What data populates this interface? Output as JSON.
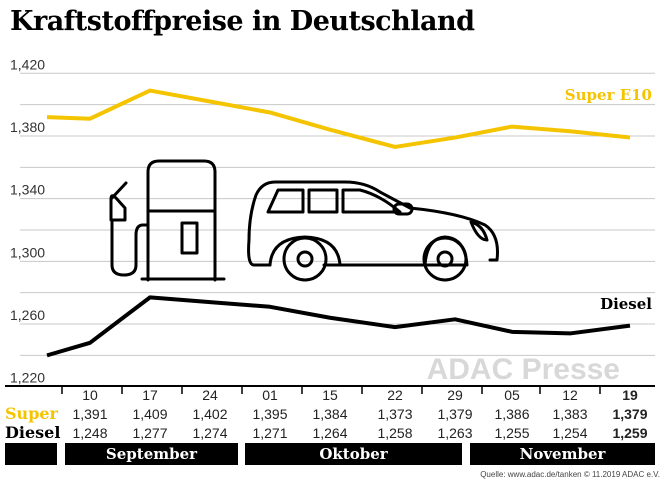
{
  "chart_data": {
    "type": "line",
    "title": "Kraftstoffpreise in Deutschland",
    "ylim": [
      1.22,
      1.42
    ],
    "yticks": [
      "1,420",
      "1,380",
      "1,340",
      "1,300",
      "1,260",
      "1,220"
    ],
    "ytick_values": [
      1.42,
      1.38,
      1.34,
      1.3,
      1.26,
      1.22
    ],
    "grid": true,
    "x": [
      "",
      "10",
      "17",
      "24",
      "01",
      "15",
      "22",
      "29",
      "05",
      "12",
      "19"
    ],
    "months": [
      {
        "label": ""
      },
      {
        "label": "September"
      },
      {
        "label": "Oktober"
      },
      {
        "label": "November"
      }
    ],
    "series": [
      {
        "name": "Super E10",
        "row_label": "Super",
        "color": "#f5c400",
        "values": [
          1.392,
          1.391,
          1.409,
          1.402,
          1.395,
          1.384,
          1.373,
          1.379,
          1.386,
          1.383,
          1.379
        ],
        "labels": [
          "",
          "1,391",
          "1,409",
          "1,402",
          "1,395",
          "1,384",
          "1,373",
          "1,379",
          "1,386",
          "1,383",
          "1,379"
        ]
      },
      {
        "name": "Diesel",
        "row_label": "Diesel",
        "color": "#000000",
        "values": [
          1.24,
          1.248,
          1.277,
          1.274,
          1.271,
          1.264,
          1.258,
          1.263,
          1.255,
          1.254,
          1.259
        ],
        "labels": [
          "",
          "1,248",
          "1,277",
          "1,274",
          "1,271",
          "1,264",
          "1,258",
          "1,263",
          "1,255",
          "1,254",
          "1,259"
        ]
      }
    ],
    "source": "Quelle: www.adac.de/tanken  © 11.2019  ADAC e.V.",
    "watermark": "ADAC Presse",
    "icons": [
      "fuel-pump-icon",
      "car-icon"
    ]
  }
}
